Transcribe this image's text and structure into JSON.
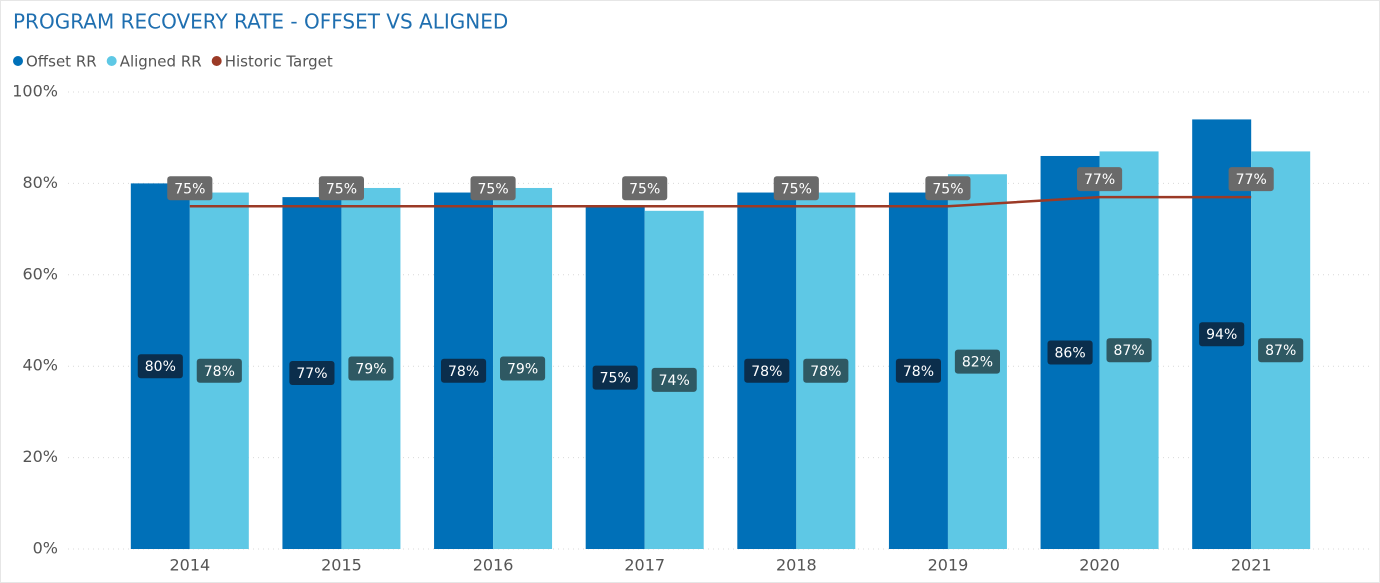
{
  "chart_data": {
    "type": "bar",
    "title": "PROGRAM RECOVERY RATE - OFFSET VS ALIGNED",
    "categories": [
      "2014",
      "2015",
      "2016",
      "2017",
      "2018",
      "2019",
      "2020",
      "2021"
    ],
    "series": [
      {
        "name": "Offset RR",
        "color": "#0070b8",
        "label_color": "#0b2e4c",
        "values": [
          80,
          77,
          78,
          75,
          78,
          78,
          86,
          94
        ],
        "value_labels": [
          "80%",
          "77%",
          "78%",
          "75%",
          "78%",
          "78%",
          "86%",
          "94%"
        ]
      },
      {
        "name": "Aligned RR",
        "color": "#5ec8e5",
        "label_color": "#2f5963",
        "values": [
          78,
          79,
          79,
          74,
          78,
          82,
          87,
          87
        ],
        "value_labels": [
          "78%",
          "79%",
          "79%",
          "74%",
          "78%",
          "82%",
          "87%",
          "87%"
        ]
      },
      {
        "name": "Historic Target",
        "type": "line",
        "color": "#9b3a26",
        "label_color": "#6a6a6a",
        "values": [
          75,
          75,
          75,
          75,
          75,
          75,
          77,
          77
        ],
        "value_labels": [
          "75%",
          "75%",
          "75%",
          "75%",
          "75%",
          "75%",
          "77%",
          "77%"
        ]
      }
    ],
    "ylim": [
      0,
      100
    ],
    "yticks": [
      {
        "value": 0,
        "label": "0%"
      },
      {
        "value": 20,
        "label": "20%"
      },
      {
        "value": 40,
        "label": "40%"
      },
      {
        "value": 60,
        "label": "60%"
      },
      {
        "value": 80,
        "label": "80%"
      },
      {
        "value": 100,
        "label": "100%"
      }
    ],
    "grid": true
  }
}
